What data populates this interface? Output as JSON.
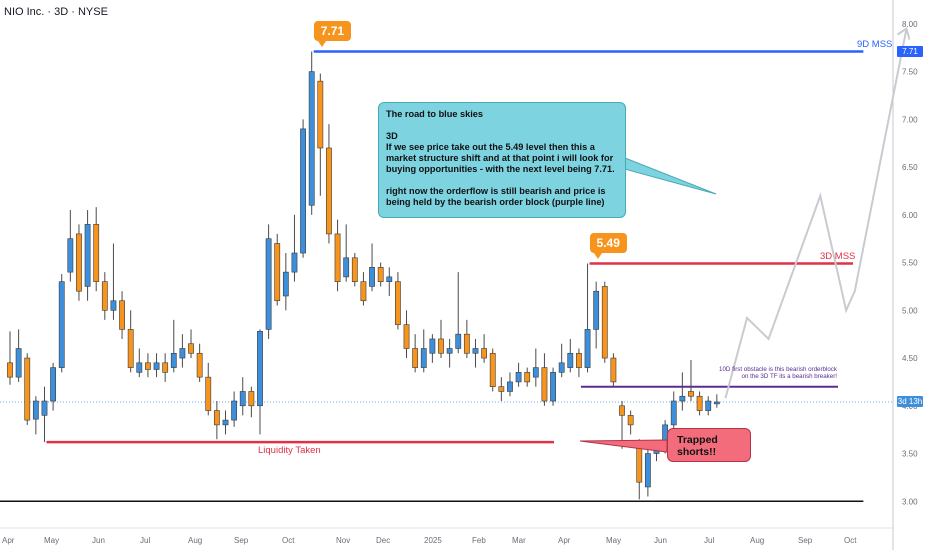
{
  "header": {
    "title": "NIO Inc. · 3D · NYSE"
  },
  "annotations": {
    "tip_771": "7.71",
    "tip_549": "5.49",
    "label_9d": "9D MSS",
    "label_3d": "3D MSS",
    "liquidity": "Liquidity Taken",
    "orderblock": "10D first obstacle is this bearish orderblock\non the 3D TF its a bearish breaker!",
    "note": "The road to blue skies\n\n3D\nIf we see price take out the 5.49 level then this a market structure shift and at that point i will look for buying opportunities - with the next level being 7.71.\n\nright now the orderflow is still bearish and price is being held by the bearish order block (purple line)",
    "trapped": "Trapped\nshorts!!",
    "badge_771": "7.71",
    "badge_now": "3d 13h"
  },
  "colors": {
    "up": "#3d8fdc",
    "down": "#f7941d",
    "blue_line": "#2962ff",
    "red_line": "#e03146",
    "purple_line": "#5b2d90",
    "note_bg": "#7dd3e0",
    "trap_bg": "#f36c7c",
    "projection": "#c9cbd0"
  },
  "chart_data": {
    "type": "candlestick",
    "title": "NIO Inc. · 3D · NYSE",
    "ylim": [
      2.72,
      8.25
    ],
    "y_ticks": [
      3.0,
      3.5,
      4.0,
      4.5,
      5.0,
      5.5,
      6.0,
      6.5,
      7.0,
      7.5,
      8.0
    ],
    "x_ticks": [
      "Apr",
      "May",
      "Jun",
      "Jul",
      "Aug",
      "Sep",
      "Oct",
      "Nov",
      "Dec",
      "2025",
      "Feb",
      "Mar",
      "Apr",
      "May",
      "Jun",
      "Jul",
      "Aug",
      "Sep",
      "Oct"
    ],
    "x_range": [
      0,
      99
    ],
    "candles": [
      {
        "x": 0,
        "o": 4.45,
        "h": 4.78,
        "l": 4.22,
        "c": 4.3
      },
      {
        "x": 1,
        "o": 4.3,
        "h": 4.8,
        "l": 4.25,
        "c": 4.6
      },
      {
        "x": 2,
        "o": 4.5,
        "h": 4.55,
        "l": 3.8,
        "c": 3.85
      },
      {
        "x": 3,
        "o": 3.86,
        "h": 4.1,
        "l": 3.7,
        "c": 4.05
      },
      {
        "x": 4,
        "o": 3.9,
        "h": 4.2,
        "l": 3.62,
        "c": 4.05
      },
      {
        "x": 5,
        "o": 4.05,
        "h": 4.45,
        "l": 3.95,
        "c": 4.4
      },
      {
        "x": 6,
        "o": 4.4,
        "h": 5.38,
        "l": 4.35,
        "c": 5.3
      },
      {
        "x": 7,
        "o": 5.4,
        "h": 6.05,
        "l": 5.3,
        "c": 5.75
      },
      {
        "x": 8,
        "o": 5.8,
        "h": 5.9,
        "l": 5.1,
        "c": 5.2
      },
      {
        "x": 9,
        "o": 5.25,
        "h": 6.05,
        "l": 5.1,
        "c": 5.9
      },
      {
        "x": 10,
        "o": 5.9,
        "h": 6.08,
        "l": 5.2,
        "c": 5.3
      },
      {
        "x": 11,
        "o": 5.3,
        "h": 5.4,
        "l": 4.9,
        "c": 5.0
      },
      {
        "x": 12,
        "o": 5.0,
        "h": 5.7,
        "l": 4.9,
        "c": 5.1
      },
      {
        "x": 13,
        "o": 5.1,
        "h": 5.2,
        "l": 4.7,
        "c": 4.8
      },
      {
        "x": 14,
        "o": 4.8,
        "h": 5.0,
        "l": 4.35,
        "c": 4.4
      },
      {
        "x": 15,
        "o": 4.35,
        "h": 4.6,
        "l": 4.3,
        "c": 4.45
      },
      {
        "x": 16,
        "o": 4.45,
        "h": 4.55,
        "l": 4.3,
        "c": 4.38
      },
      {
        "x": 17,
        "o": 4.38,
        "h": 4.55,
        "l": 4.3,
        "c": 4.45
      },
      {
        "x": 18,
        "o": 4.45,
        "h": 4.55,
        "l": 4.25,
        "c": 4.35
      },
      {
        "x": 19,
        "o": 4.4,
        "h": 4.9,
        "l": 4.35,
        "c": 4.55
      },
      {
        "x": 20,
        "o": 4.5,
        "h": 4.75,
        "l": 4.4,
        "c": 4.6
      },
      {
        "x": 21,
        "o": 4.65,
        "h": 4.8,
        "l": 4.5,
        "c": 4.55
      },
      {
        "x": 22,
        "o": 4.55,
        "h": 4.65,
        "l": 4.25,
        "c": 4.3
      },
      {
        "x": 23,
        "o": 4.3,
        "h": 4.45,
        "l": 3.9,
        "c": 3.95
      },
      {
        "x": 24,
        "o": 3.95,
        "h": 4.05,
        "l": 3.65,
        "c": 3.8
      },
      {
        "x": 25,
        "o": 3.8,
        "h": 3.95,
        "l": 3.7,
        "c": 3.85
      },
      {
        "x": 26,
        "o": 3.85,
        "h": 4.15,
        "l": 3.78,
        "c": 4.05
      },
      {
        "x": 27,
        "o": 4.0,
        "h": 4.3,
        "l": 3.9,
        "c": 4.15
      },
      {
        "x": 28,
        "o": 4.15,
        "h": 4.2,
        "l": 3.88,
        "c": 4.0
      },
      {
        "x": 29,
        "o": 4.0,
        "h": 4.8,
        "l": 3.7,
        "c": 4.78
      },
      {
        "x": 30,
        "o": 4.8,
        "h": 5.9,
        "l": 4.7,
        "c": 5.75
      },
      {
        "x": 31,
        "o": 5.7,
        "h": 5.8,
        "l": 5.05,
        "c": 5.1
      },
      {
        "x": 32,
        "o": 5.15,
        "h": 5.6,
        "l": 5.0,
        "c": 5.4
      },
      {
        "x": 33,
        "o": 5.4,
        "h": 6.0,
        "l": 5.3,
        "c": 5.6
      },
      {
        "x": 34,
        "o": 5.6,
        "h": 7.0,
        "l": 5.55,
        "c": 6.9
      },
      {
        "x": 35,
        "o": 6.1,
        "h": 7.71,
        "l": 6.0,
        "c": 7.5
      },
      {
        "x": 36,
        "o": 7.4,
        "h": 7.48,
        "l": 6.2,
        "c": 6.7
      },
      {
        "x": 37,
        "o": 6.7,
        "h": 6.95,
        "l": 5.7,
        "c": 5.8
      },
      {
        "x": 38,
        "o": 5.8,
        "h": 5.95,
        "l": 5.2,
        "c": 5.3
      },
      {
        "x": 39,
        "o": 5.35,
        "h": 5.9,
        "l": 5.3,
        "c": 5.55
      },
      {
        "x": 40,
        "o": 5.55,
        "h": 5.6,
        "l": 5.25,
        "c": 5.3
      },
      {
        "x": 41,
        "o": 5.3,
        "h": 5.4,
        "l": 5.05,
        "c": 5.1
      },
      {
        "x": 42,
        "o": 5.25,
        "h": 5.7,
        "l": 5.2,
        "c": 5.45
      },
      {
        "x": 43,
        "o": 5.45,
        "h": 5.5,
        "l": 5.25,
        "c": 5.3
      },
      {
        "x": 44,
        "o": 5.3,
        "h": 5.45,
        "l": 5.15,
        "c": 5.35
      },
      {
        "x": 45,
        "o": 5.3,
        "h": 5.4,
        "l": 4.8,
        "c": 4.85
      },
      {
        "x": 46,
        "o": 4.85,
        "h": 5.0,
        "l": 4.5,
        "c": 4.6
      },
      {
        "x": 47,
        "o": 4.6,
        "h": 4.75,
        "l": 4.35,
        "c": 4.4
      },
      {
        "x": 48,
        "o": 4.4,
        "h": 4.8,
        "l": 4.35,
        "c": 4.6
      },
      {
        "x": 49,
        "o": 4.55,
        "h": 4.75,
        "l": 4.45,
        "c": 4.7
      },
      {
        "x": 50,
        "o": 4.7,
        "h": 4.9,
        "l": 4.5,
        "c": 4.55
      },
      {
        "x": 51,
        "o": 4.55,
        "h": 4.7,
        "l": 4.4,
        "c": 4.6
      },
      {
        "x": 52,
        "o": 4.6,
        "h": 5.4,
        "l": 4.55,
        "c": 4.75
      },
      {
        "x": 53,
        "o": 4.75,
        "h": 4.9,
        "l": 4.5,
        "c": 4.55
      },
      {
        "x": 54,
        "o": 4.55,
        "h": 4.7,
        "l": 4.4,
        "c": 4.6
      },
      {
        "x": 55,
        "o": 4.6,
        "h": 4.75,
        "l": 4.45,
        "c": 4.5
      },
      {
        "x": 56,
        "o": 4.55,
        "h": 4.6,
        "l": 4.15,
        "c": 4.2
      },
      {
        "x": 57,
        "o": 4.2,
        "h": 4.3,
        "l": 4.05,
        "c": 4.15
      },
      {
        "x": 58,
        "o": 4.15,
        "h": 4.35,
        "l": 4.1,
        "c": 4.25
      },
      {
        "x": 59,
        "o": 4.25,
        "h": 4.45,
        "l": 4.2,
        "c": 4.35
      },
      {
        "x": 60,
        "o": 4.35,
        "h": 4.4,
        "l": 4.2,
        "c": 4.25
      },
      {
        "x": 61,
        "o": 4.3,
        "h": 4.6,
        "l": 4.2,
        "c": 4.4
      },
      {
        "x": 62,
        "o": 4.4,
        "h": 4.55,
        "l": 4.0,
        "c": 4.05
      },
      {
        "x": 63,
        "o": 4.05,
        "h": 4.4,
        "l": 4.0,
        "c": 4.35
      },
      {
        "x": 64,
        "o": 4.35,
        "h": 4.65,
        "l": 4.3,
        "c": 4.45
      },
      {
        "x": 65,
        "o": 4.4,
        "h": 4.7,
        "l": 4.35,
        "c": 4.55
      },
      {
        "x": 66,
        "o": 4.55,
        "h": 4.6,
        "l": 4.3,
        "c": 4.4
      },
      {
        "x": 67,
        "o": 4.4,
        "h": 5.49,
        "l": 4.35,
        "c": 4.8
      },
      {
        "x": 68,
        "o": 4.8,
        "h": 5.3,
        "l": 4.6,
        "c": 5.2
      },
      {
        "x": 69,
        "o": 5.25,
        "h": 5.3,
        "l": 4.45,
        "c": 4.5
      },
      {
        "x": 70,
        "o": 4.5,
        "h": 4.55,
        "l": 4.2,
        "c": 4.25
      },
      {
        "x": 71,
        "o": 4.0,
        "h": 4.05,
        "l": 3.55,
        "c": 3.9
      },
      {
        "x": 72,
        "o": 3.9,
        "h": 3.95,
        "l": 3.7,
        "c": 3.8
      },
      {
        "x": 73,
        "o": 3.6,
        "h": 3.65,
        "l": 3.02,
        "c": 3.2
      },
      {
        "x": 74,
        "o": 3.15,
        "h": 3.55,
        "l": 3.05,
        "c": 3.5
      },
      {
        "x": 75,
        "o": 3.5,
        "h": 3.6,
        "l": 3.42,
        "c": 3.55
      },
      {
        "x": 76,
        "o": 3.55,
        "h": 3.85,
        "l": 3.5,
        "c": 3.8
      },
      {
        "x": 77,
        "o": 3.8,
        "h": 4.15,
        "l": 3.75,
        "c": 4.05
      },
      {
        "x": 78,
        "o": 4.05,
        "h": 4.35,
        "l": 3.95,
        "c": 4.1
      },
      {
        "x": 79,
        "o": 4.15,
        "h": 4.48,
        "l": 4.05,
        "c": 4.1
      },
      {
        "x": 80,
        "o": 4.1,
        "h": 4.15,
        "l": 3.9,
        "c": 3.95
      },
      {
        "x": 81,
        "o": 3.95,
        "h": 4.1,
        "l": 3.9,
        "c": 4.05
      },
      {
        "x": 82,
        "o": 4.02,
        "h": 4.12,
        "l": 3.98,
        "c": 4.04
      }
    ],
    "levels": [
      {
        "name": "9D MSS",
        "value": 7.71,
        "x_start": 35,
        "x_end": 99
      },
      {
        "name": "3D MSS",
        "value": 5.49,
        "x_start": 67,
        "x_end": 99
      },
      {
        "name": "Liquidity Taken",
        "value": 3.62,
        "x_start": 4,
        "x_end": 69
      },
      {
        "name": "orderblock",
        "value": 4.2,
        "x_start": 66,
        "x_end": 99
      },
      {
        "name": "support",
        "value": 3.0,
        "x_start": 0,
        "x_end": 99
      }
    ],
    "current_price": 4.04,
    "projection": [
      [
        83,
        4.08
      ],
      [
        85.5,
        4.92
      ],
      [
        88,
        4.7
      ],
      [
        94,
        6.2
      ],
      [
        97,
        5.0
      ],
      [
        98,
        5.2
      ],
      [
        104,
        7.95
      ]
    ]
  }
}
